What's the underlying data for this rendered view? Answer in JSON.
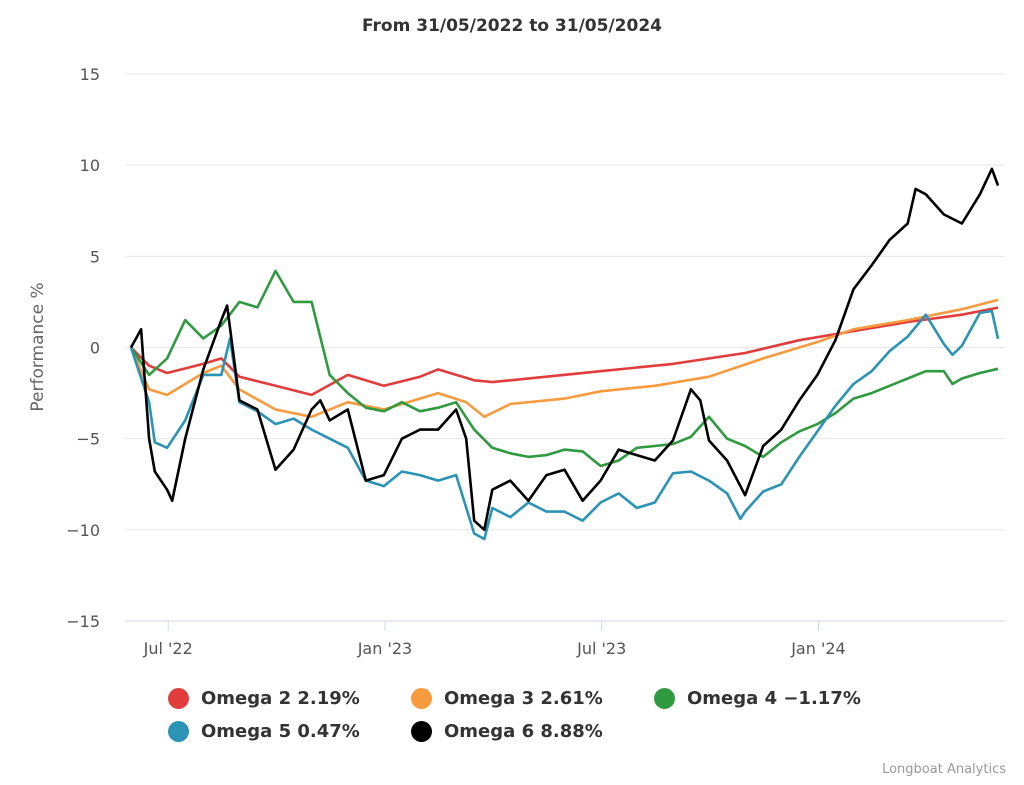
{
  "chart_data": {
    "type": "line",
    "title": "From 31/05/2022 to 31/05/2024",
    "xlabel": "",
    "ylabel": "Performance %",
    "x_unit": "months since 31/05/2022",
    "xlim": [
      0,
      24
    ],
    "ylim": [
      -15,
      15
    ],
    "yticks": [
      15,
      10,
      5,
      0,
      -5,
      -10,
      -15
    ],
    "ytick_labels": [
      "15",
      "10",
      "5",
      "0",
      "−5",
      "−10",
      "−15"
    ],
    "xticks": [
      {
        "label": "Jul '22",
        "x": 1.03
      },
      {
        "label": "Jan '23",
        "x": 7.03
      },
      {
        "label": "Jul '23",
        "x": 13.03
      },
      {
        "label": "Jan '24",
        "x": 19.03
      }
    ],
    "grid": true,
    "legend_position": "bottom",
    "series": [
      {
        "name": "Omega 2",
        "legend": "Omega 2 2.19%",
        "color": "#e23d3d",
        "points": [
          [
            0,
            0
          ],
          [
            0.5,
            -1
          ],
          [
            1,
            -1.4
          ],
          [
            2,
            -0.9
          ],
          [
            2.5,
            -0.6
          ],
          [
            3,
            -1.6
          ],
          [
            4,
            -2.1
          ],
          [
            5,
            -2.6
          ],
          [
            6,
            -1.5
          ],
          [
            7,
            -2.1
          ],
          [
            8,
            -1.6
          ],
          [
            8.5,
            -1.2
          ],
          [
            9.5,
            -1.8
          ],
          [
            10,
            -1.9
          ],
          [
            11.5,
            -1.6
          ],
          [
            13,
            -1.3
          ],
          [
            15,
            -0.9
          ],
          [
            17,
            -0.3
          ],
          [
            18.5,
            0.4
          ],
          [
            20,
            0.9
          ],
          [
            21.5,
            1.4
          ],
          [
            23,
            1.8
          ],
          [
            24,
            2.19
          ]
        ]
      },
      {
        "name": "Omega 3",
        "legend": "Omega 3 2.61%",
        "color": "#f89a3e",
        "points": [
          [
            0,
            0
          ],
          [
            0.5,
            -2.3
          ],
          [
            1,
            -2.6
          ],
          [
            2,
            -1.4
          ],
          [
            2.5,
            -1
          ],
          [
            3,
            -2.3
          ],
          [
            4,
            -3.4
          ],
          [
            5,
            -3.8
          ],
          [
            6,
            -3
          ],
          [
            7,
            -3.4
          ],
          [
            8,
            -2.8
          ],
          [
            8.5,
            -2.5
          ],
          [
            9.28,
            -3
          ],
          [
            9.78,
            -3.8
          ],
          [
            10.5,
            -3.1
          ],
          [
            12,
            -2.8
          ],
          [
            13,
            -2.4
          ],
          [
            14.5,
            -2.1
          ],
          [
            16,
            -1.6
          ],
          [
            17.5,
            -0.6
          ],
          [
            19,
            0.3
          ],
          [
            20,
            1
          ],
          [
            21.5,
            1.5
          ],
          [
            23,
            2.1
          ],
          [
            24,
            2.61
          ]
        ]
      },
      {
        "name": "Omega 4",
        "legend": "Omega 4 −1.17%",
        "color": "#2f9a40",
        "points": [
          [
            0,
            0
          ],
          [
            0.5,
            -1.5
          ],
          [
            1,
            -0.6
          ],
          [
            1.5,
            1.5
          ],
          [
            2,
            0.5
          ],
          [
            2.5,
            1.2
          ],
          [
            3,
            2.5
          ],
          [
            3.5,
            2.2
          ],
          [
            4,
            4.2
          ],
          [
            4.5,
            2.5
          ],
          [
            5,
            2.5
          ],
          [
            5.5,
            -1.5
          ],
          [
            6,
            -2.5
          ],
          [
            6.5,
            -3.3
          ],
          [
            7,
            -3.5
          ],
          [
            7.5,
            -3
          ],
          [
            8,
            -3.5
          ],
          [
            8.5,
            -3.3
          ],
          [
            9,
            -3
          ],
          [
            9.5,
            -4.5
          ],
          [
            10,
            -5.5
          ],
          [
            10.5,
            -5.8
          ],
          [
            11,
            -6
          ],
          [
            11.5,
            -5.9
          ],
          [
            12,
            -5.6
          ],
          [
            12.5,
            -5.7
          ],
          [
            13,
            -6.5
          ],
          [
            13.5,
            -6.2
          ],
          [
            14,
            -5.5
          ],
          [
            14.5,
            -5.4
          ],
          [
            15,
            -5.3
          ],
          [
            15.5,
            -4.9
          ],
          [
            16,
            -3.8
          ],
          [
            16.5,
            -5
          ],
          [
            17,
            -5.4
          ],
          [
            17.5,
            -6
          ],
          [
            18,
            -5.2
          ],
          [
            18.5,
            -4.6
          ],
          [
            19,
            -4.2
          ],
          [
            19.5,
            -3.6
          ],
          [
            20,
            -2.8
          ],
          [
            20.5,
            -2.5
          ],
          [
            21,
            -2.1
          ],
          [
            21.5,
            -1.7
          ],
          [
            22,
            -1.3
          ],
          [
            22.5,
            -1.3
          ],
          [
            22.74,
            -2
          ],
          [
            23,
            -1.7
          ],
          [
            23.5,
            -1.4
          ],
          [
            24,
            -1.17
          ]
        ]
      },
      {
        "name": "Omega 5",
        "legend": "Omega 5 0.47%",
        "color": "#2b93b6",
        "points": [
          [
            0,
            0
          ],
          [
            0.5,
            -3
          ],
          [
            0.66,
            -5.2
          ],
          [
            1,
            -5.5
          ],
          [
            1.5,
            -4
          ],
          [
            2,
            -1.5
          ],
          [
            2.5,
            -1.5
          ],
          [
            2.74,
            0.5
          ],
          [
            3,
            -3
          ],
          [
            3.5,
            -3.5
          ],
          [
            4,
            -4.2
          ],
          [
            4.5,
            -3.9
          ],
          [
            5,
            -4.5
          ],
          [
            5.5,
            -5
          ],
          [
            6,
            -5.5
          ],
          [
            6.5,
            -7.3
          ],
          [
            7,
            -7.6
          ],
          [
            7.5,
            -6.8
          ],
          [
            8,
            -7
          ],
          [
            8.5,
            -7.3
          ],
          [
            9,
            -7
          ],
          [
            9.5,
            -10.2
          ],
          [
            9.78,
            -10.5
          ],
          [
            10,
            -8.8
          ],
          [
            10.5,
            -9.3
          ],
          [
            11,
            -8.5
          ],
          [
            11.5,
            -9
          ],
          [
            12,
            -9
          ],
          [
            12.5,
            -9.5
          ],
          [
            13,
            -8.5
          ],
          [
            13.5,
            -8
          ],
          [
            14,
            -8.8
          ],
          [
            14.5,
            -8.5
          ],
          [
            15,
            -6.9
          ],
          [
            15.5,
            -6.8
          ],
          [
            16,
            -7.3
          ],
          [
            16.5,
            -8
          ],
          [
            16.87,
            -9.4
          ],
          [
            17,
            -9
          ],
          [
            17.5,
            -7.9
          ],
          [
            18,
            -7.5
          ],
          [
            18.5,
            -6
          ],
          [
            19,
            -4.6
          ],
          [
            19.5,
            -3.2
          ],
          [
            20,
            -2
          ],
          [
            20.5,
            -1.3
          ],
          [
            21,
            -0.2
          ],
          [
            21.5,
            0.6
          ],
          [
            22,
            1.8
          ],
          [
            22.5,
            0.2
          ],
          [
            22.74,
            -0.4
          ],
          [
            23,
            0.1
          ],
          [
            23.5,
            1.9
          ],
          [
            23.83,
            2
          ],
          [
            24,
            0.47
          ]
        ]
      },
      {
        "name": "Omega 6",
        "legend": "Omega 6 8.88%",
        "color": "#000000",
        "points": [
          [
            0,
            0
          ],
          [
            0.28,
            1
          ],
          [
            0.5,
            -5
          ],
          [
            0.66,
            -6.8
          ],
          [
            1,
            -7.8
          ],
          [
            1.14,
            -8.4
          ],
          [
            1.5,
            -5
          ],
          [
            2,
            -1.2
          ],
          [
            2.5,
            1.5
          ],
          [
            2.66,
            2.3
          ],
          [
            3,
            -2.9
          ],
          [
            3.5,
            -3.4
          ],
          [
            4,
            -6.7
          ],
          [
            4.5,
            -5.6
          ],
          [
            5,
            -3.4
          ],
          [
            5.24,
            -2.9
          ],
          [
            5.5,
            -4
          ],
          [
            6,
            -3.4
          ],
          [
            6.5,
            -7.3
          ],
          [
            7,
            -7
          ],
          [
            7.5,
            -5
          ],
          [
            8,
            -4.5
          ],
          [
            8.5,
            -4.5
          ],
          [
            9,
            -3.4
          ],
          [
            9.28,
            -5
          ],
          [
            9.5,
            -9.5
          ],
          [
            9.78,
            -10
          ],
          [
            10,
            -7.8
          ],
          [
            10.5,
            -7.3
          ],
          [
            11,
            -8.4
          ],
          [
            11.5,
            -7
          ],
          [
            12,
            -6.7
          ],
          [
            12.5,
            -8.4
          ],
          [
            13,
            -7.3
          ],
          [
            13.5,
            -5.6
          ],
          [
            14,
            -5.9
          ],
          [
            14.5,
            -6.2
          ],
          [
            15,
            -5.1
          ],
          [
            15.5,
            -2.3
          ],
          [
            15.76,
            -2.9
          ],
          [
            16,
            -5.1
          ],
          [
            16.5,
            -6.2
          ],
          [
            17,
            -8.1
          ],
          [
            17.5,
            -5.4
          ],
          [
            18,
            -4.5
          ],
          [
            18.5,
            -2.9
          ],
          [
            19,
            -1.5
          ],
          [
            19.5,
            0.4
          ],
          [
            20,
            3.2
          ],
          [
            20.5,
            4.5
          ],
          [
            21,
            5.9
          ],
          [
            21.5,
            6.8
          ],
          [
            21.72,
            8.7
          ],
          [
            22,
            8.4
          ],
          [
            22.5,
            7.3
          ],
          [
            23,
            6.8
          ],
          [
            23.5,
            8.4
          ],
          [
            23.83,
            9.8
          ],
          [
            24,
            8.88
          ]
        ]
      }
    ],
    "credit": "Longboat Analytics"
  }
}
